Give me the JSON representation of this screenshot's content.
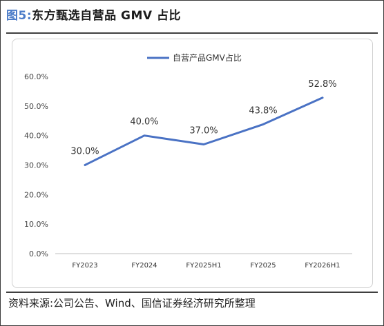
{
  "figure": {
    "prefix": "图5:",
    "title": "东方甄选自营品 GMV 占比",
    "source": "资料来源:公司公告、Wind、国信证券经济研究所整理"
  },
  "colors": {
    "line": "#4a72c4",
    "rule": "#3f3f3f",
    "title_prefix": "#4a7bc8"
  },
  "chart_data": {
    "type": "line",
    "title": "",
    "xlabel": "",
    "ylabel": "",
    "legend": {
      "placement": "top-center"
    },
    "grid": false,
    "categories": [
      "FY2023",
      "FY2024",
      "FY2025H1",
      "FY2025",
      "FY2026H1"
    ],
    "ylim": [
      0,
      60
    ],
    "yticks": [
      0,
      10,
      20,
      30,
      40,
      50,
      60
    ],
    "ytick_labels": [
      "0.0%",
      "10.0%",
      "20.0%",
      "30.0%",
      "40.0%",
      "50.0%",
      "60.0%"
    ],
    "series": [
      {
        "name": "自营产品GMV占比",
        "values": [
          30.0,
          40.0,
          37.0,
          43.8,
          52.8
        ],
        "labels": [
          "30.0%",
          "40.0%",
          "37.0%",
          "43.8%",
          "52.8%"
        ]
      }
    ]
  }
}
